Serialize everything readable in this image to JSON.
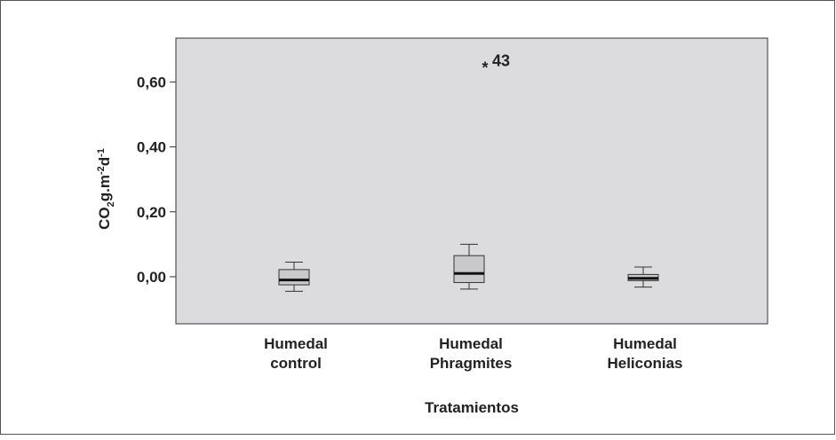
{
  "chart_data": {
    "type": "box",
    "xlabel": "Tratamientos",
    "ylabel": {
      "base": "CO",
      "sub": "2",
      "mid": "g.m",
      "sup1": "-2",
      "d": "d",
      "sup2": "-1"
    },
    "ylim": [
      -0.145,
      0.735
    ],
    "yticks": [
      {
        "value": 0.6,
        "label": "0,60"
      },
      {
        "value": 0.4,
        "label": "0,40"
      },
      {
        "value": 0.2,
        "label": "0,20"
      },
      {
        "value": 0.0,
        "label": "0,00"
      }
    ],
    "grid": false,
    "categories": [
      {
        "line1": "Humedal",
        "line2": "control"
      },
      {
        "line1": "Humedal",
        "line2": "Phragmites"
      },
      {
        "line1": "Humedal",
        "line2": "Heliconias"
      }
    ],
    "boxes": [
      {
        "whisker_low": -0.045,
        "q1": -0.025,
        "median": -0.01,
        "q3": 0.022,
        "whisker_high": 0.045
      },
      {
        "whisker_low": -0.038,
        "q1": -0.018,
        "median": 0.01,
        "q3": 0.065,
        "whisker_high": 0.1
      },
      {
        "whisker_low": -0.032,
        "q1": -0.012,
        "median": -0.005,
        "q3": 0.007,
        "whisker_high": 0.03
      }
    ],
    "outliers": [
      {
        "category_index": 1,
        "value": 0.655,
        "marker": "*",
        "label": "43"
      }
    ],
    "colors": {
      "plot_background": "#dcdcde",
      "box_fill": "#c9c9cb",
      "stroke": "#333333",
      "median": "#111111"
    }
  }
}
